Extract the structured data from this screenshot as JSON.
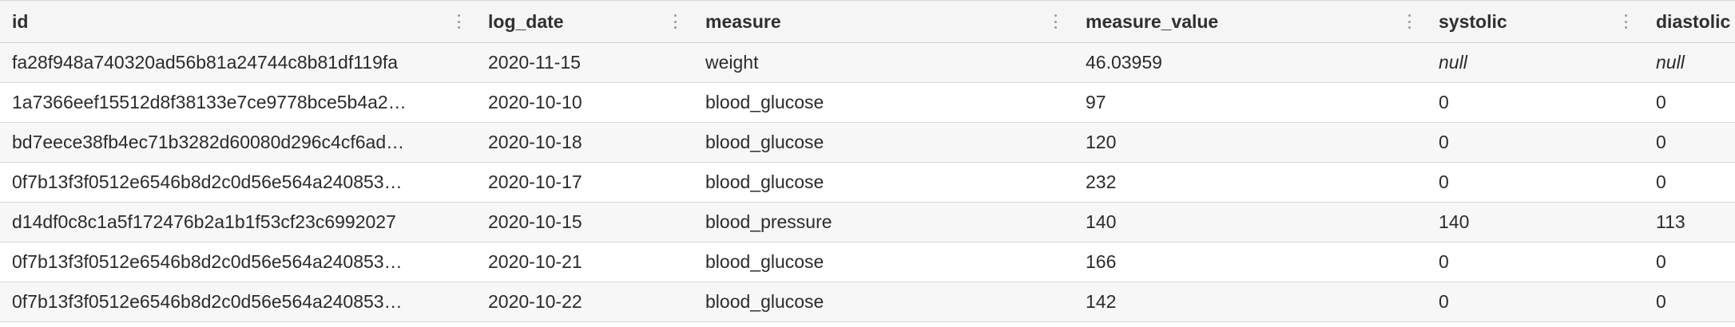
{
  "columns": [
    "id",
    "log_date",
    "measure",
    "measure_value",
    "systolic",
    "diastolic"
  ],
  "rows": [
    [
      "fa28f948a740320ad56b81a24744c8b81df119fa",
      "2020-11-15",
      "weight",
      "46.03959",
      "null",
      "null"
    ],
    [
      "1a7366eef15512d8f38133e7ce9778bce5b4a2…",
      "2020-10-10",
      "blood_glucose",
      "97",
      "0",
      "0"
    ],
    [
      "bd7eece38fb4ec71b3282d60080d296c4cf6ad…",
      "2020-10-18",
      "blood_glucose",
      "120",
      "0",
      "0"
    ],
    [
      "0f7b13f3f0512e6546b8d2c0d56e564a240853…",
      "2020-10-17",
      "blood_glucose",
      "232",
      "0",
      "0"
    ],
    [
      "d14df0c8c1a5f172476b2a1b1f53cf23c6992027",
      "2020-10-15",
      "blood_pressure",
      "140",
      "140",
      "113"
    ],
    [
      "0f7b13f3f0512e6546b8d2c0d56e564a240853…",
      "2020-10-21",
      "blood_glucose",
      "166",
      "0",
      "0"
    ],
    [
      "0f7b13f3f0512e6546b8d2c0d56e564a240853…",
      "2020-10-22",
      "blood_glucose",
      "142",
      "0",
      "0"
    ]
  ],
  "icons": {
    "column_menu": "kebab-icon"
  }
}
